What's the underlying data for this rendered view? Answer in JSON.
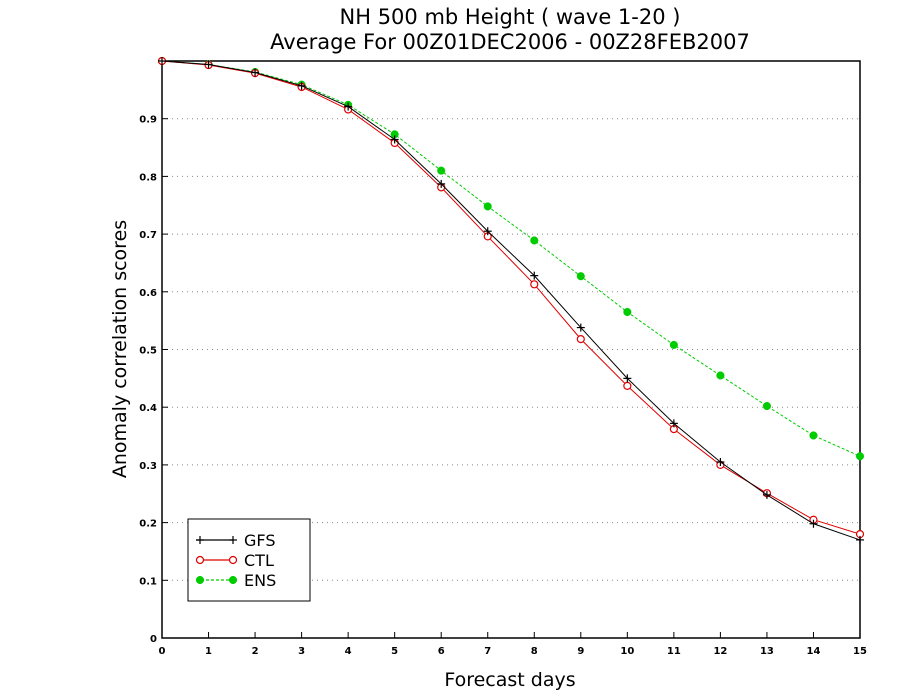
{
  "chart_data": {
    "type": "line",
    "title": "NH 500 mb Height ( wave 1-20 )",
    "subtitle": "Average For 00Z01DEC2006 - 00Z28FEB2007",
    "xlabel": "Forecast days",
    "ylabel": "Anomaly correlation scores",
    "xlim": [
      0,
      15
    ],
    "ylim": [
      0,
      1
    ],
    "x_ticks": [
      "0",
      "1",
      "2",
      "3",
      "4",
      "5",
      "6",
      "7",
      "8",
      "9",
      "10",
      "11",
      "12",
      "13",
      "14",
      "15"
    ],
    "y_ticks": [
      "0",
      "0.1",
      "0.2",
      "0.3",
      "0.4",
      "0.5",
      "0.6",
      "0.7",
      "0.8",
      "0.9"
    ],
    "grid": true,
    "legend_position": "bottom-left",
    "x": [
      0,
      1,
      2,
      3,
      4,
      5,
      6,
      7,
      8,
      9,
      10,
      11,
      12,
      13,
      14,
      15
    ],
    "series": [
      {
        "name": "GFS",
        "color": "#000000",
        "marker": "plus",
        "line": "solid",
        "values": [
          1.0,
          0.994,
          0.98,
          0.957,
          0.921,
          0.864,
          0.787,
          0.705,
          0.628,
          0.538,
          0.45,
          0.372,
          0.305,
          0.248,
          0.198,
          0.17
        ]
      },
      {
        "name": "CTL",
        "color": "#e00000",
        "marker": "open-circle",
        "line": "solid",
        "values": [
          1.0,
          0.993,
          0.979,
          0.955,
          0.916,
          0.858,
          0.781,
          0.696,
          0.613,
          0.518,
          0.437,
          0.362,
          0.3,
          0.251,
          0.205,
          0.18
        ]
      },
      {
        "name": "ENS",
        "color": "#00cc00",
        "marker": "filled-circle",
        "line": "dashed",
        "values": [
          1.0,
          0.994,
          0.981,
          0.959,
          0.924,
          0.873,
          0.81,
          0.748,
          0.689,
          0.627,
          0.565,
          0.508,
          0.455,
          0.402,
          0.351,
          0.315
        ]
      }
    ]
  }
}
